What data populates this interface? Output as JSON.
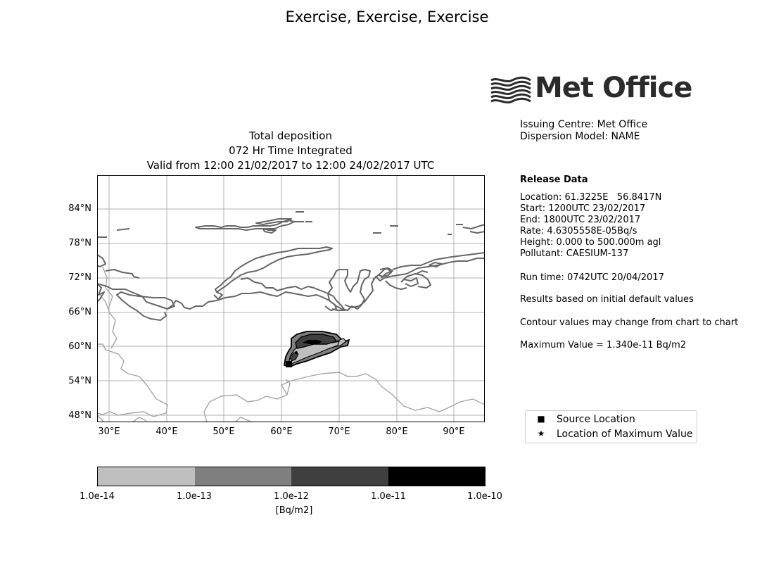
{
  "main_title": "Exercise, Exercise, Exercise",
  "logo": {
    "text": "Met Office",
    "icon": "met-office-wave-logo"
  },
  "map": {
    "title_lines": [
      "Total deposition",
      "072 Hr Time Integrated",
      "Valid from 12:00 21/02/2017 to 12:00 24/02/2017 UTC"
    ],
    "lat_ticks": [
      "84°N",
      "78°N",
      "72°N",
      "66°N",
      "60°N",
      "54°N",
      "48°N"
    ],
    "lon_ticks": [
      "30°E",
      "40°E",
      "50°E",
      "60°E",
      "70°E",
      "80°E",
      "90°E"
    ],
    "extent": {
      "lon_min": 28,
      "lon_max": 95.5,
      "lat_min": 47,
      "lat_max": 90
    },
    "source_location": {
      "lon": 61.3225,
      "lat": 56.8417
    }
  },
  "info": {
    "issuing_centre": "Issuing Centre: Met Office",
    "dispersion_model": "Dispersion Model: NAME",
    "release_heading": "Release Data",
    "location": "Location: 61.3225E   56.8417N",
    "start": "Start: 1200UTC 23/02/2017",
    "end": "End: 1800UTC 23/02/2017",
    "rate": "Rate: 4.6305558E-05Bq/s",
    "height": "Height: 0.000 to 500.000m agl",
    "pollutant": "Pollutant: CAESIUM-137",
    "run_time": "Run time: 0742UTC 20/04/2017",
    "results_note": "Results based on initial default values",
    "contour_note": "Contour values may change from chart to chart",
    "maximum_value": "Maximum Value = 1.340e-11 Bq/m2"
  },
  "colorbar": {
    "ticks": [
      "1.0e-14",
      "1.0e-13",
      "1.0e-12",
      "1.0e-11",
      "1.0e-10"
    ],
    "colors": [
      "#bfbfbf",
      "#7f7f7f",
      "#3f3f3f",
      "#000000"
    ],
    "unit_label": "[Bq/m2]"
  },
  "legend": {
    "items": [
      {
        "marker": "■",
        "label": "Source Location",
        "icon": "square-marker-icon"
      },
      {
        "marker": "★",
        "label": "Location of Maximum Value",
        "icon": "star-marker-icon"
      }
    ]
  }
}
